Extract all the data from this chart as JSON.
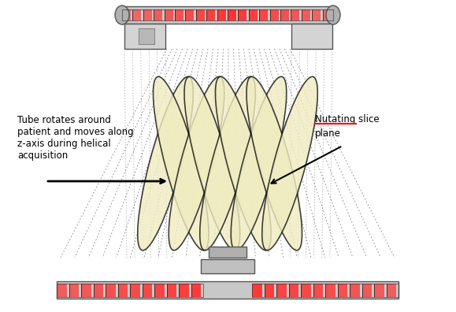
{
  "fig_width": 5.79,
  "fig_height": 3.96,
  "dpi": 100,
  "bg_color": "#ffffff",
  "ellipse_fill": "#f0ecc0",
  "ellipse_edge": "#111111",
  "n_ellipses": 9,
  "left_text": "Tube rotates around\npatient and moves along\nz-axis during helical\nacquisition",
  "right_text_1": "Nutating slice",
  "right_text_2": "plane"
}
